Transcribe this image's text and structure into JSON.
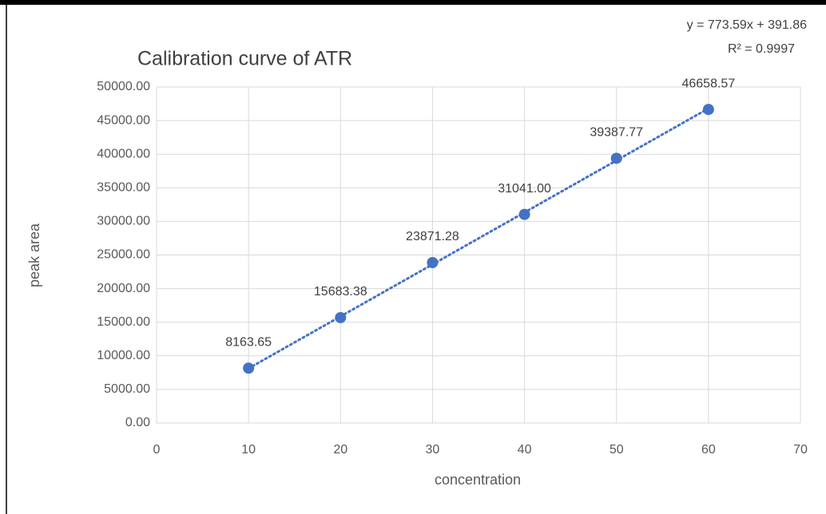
{
  "chart_data": {
    "type": "scatter",
    "title": "Calibration curve of ATR",
    "x_label": "concentration",
    "y_label": "peak area",
    "x": [
      10,
      20,
      30,
      40,
      50,
      60
    ],
    "values": [
      8163.65,
      15683.38,
      23871.28,
      31041,
      39387.77,
      46658.57
    ],
    "value_labels": [
      "8163.65",
      "15683.38",
      "23871.28",
      "31041.00",
      "39387.77",
      "46658.57"
    ],
    "color": "#4472c4",
    "xlim": [
      0,
      70
    ],
    "xticks": [
      0,
      10,
      20,
      30,
      40,
      50,
      60,
      70
    ],
    "ylim": [
      0,
      50000
    ],
    "yticks": [
      {
        "value": 0,
        "label": "0.00"
      },
      {
        "value": 5000,
        "label": "5000.00"
      },
      {
        "value": 10000,
        "label": "10000.00"
      },
      {
        "value": 15000,
        "label": "15000.00"
      },
      {
        "value": 20000,
        "label": "20000.00"
      },
      {
        "value": 25000,
        "label": "25000.00"
      },
      {
        "value": 30000,
        "label": "30000.00"
      },
      {
        "value": 35000,
        "label": "35000.00"
      },
      {
        "value": 40000,
        "label": "40000.00"
      },
      {
        "value": 45000,
        "label": "45000.00"
      },
      {
        "value": 50000,
        "label": "50000.00"
      }
    ],
    "grid": true,
    "trendline": {
      "slope": 773.59,
      "intercept": 391.86,
      "equation": "y = 773.59x + 391.86",
      "r_squared": "R² = 0.9997"
    }
  }
}
